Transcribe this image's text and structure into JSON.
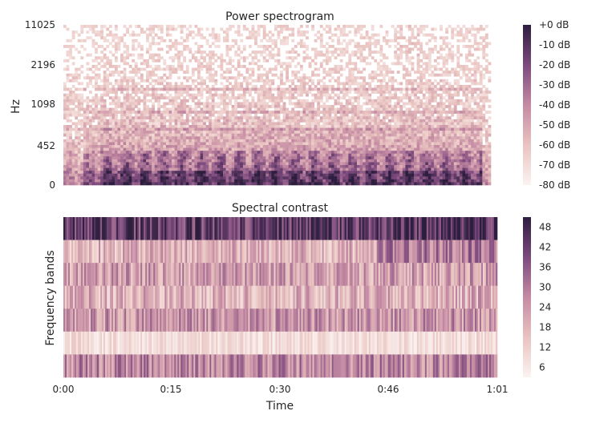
{
  "chart_data": [
    {
      "type": "heatmap",
      "title": "Power spectrogram",
      "ylabel": "Hz",
      "y_scale": "log",
      "y_ticks": [
        "0",
        "452",
        "1098",
        "2196",
        "11025"
      ],
      "x_range_seconds": [
        0,
        61
      ],
      "colorbar": {
        "ticks": [
          "+0 dB",
          "-10 dB",
          "-20 dB",
          "-30 dB",
          "-40 dB",
          "-50 dB",
          "-60 dB",
          "-70 dB",
          "-80 dB"
        ],
        "range_db": [
          -80,
          0
        ]
      }
    },
    {
      "type": "heatmap",
      "title": "Spectral contrast",
      "ylabel": "Frequency bands",
      "xlabel": "Time",
      "x_ticks": [
        "0:00",
        "0:15",
        "0:30",
        "0:46",
        "1:01"
      ],
      "bands": 7,
      "colorbar": {
        "ticks": [
          "48",
          "42",
          "36",
          "30",
          "24",
          "18",
          "12",
          "6"
        ],
        "range": [
          3,
          51
        ]
      }
    }
  ],
  "colors": {
    "low": "#fbf3f1",
    "mid": "#c48aa3",
    "high": "#2d1e3e"
  }
}
